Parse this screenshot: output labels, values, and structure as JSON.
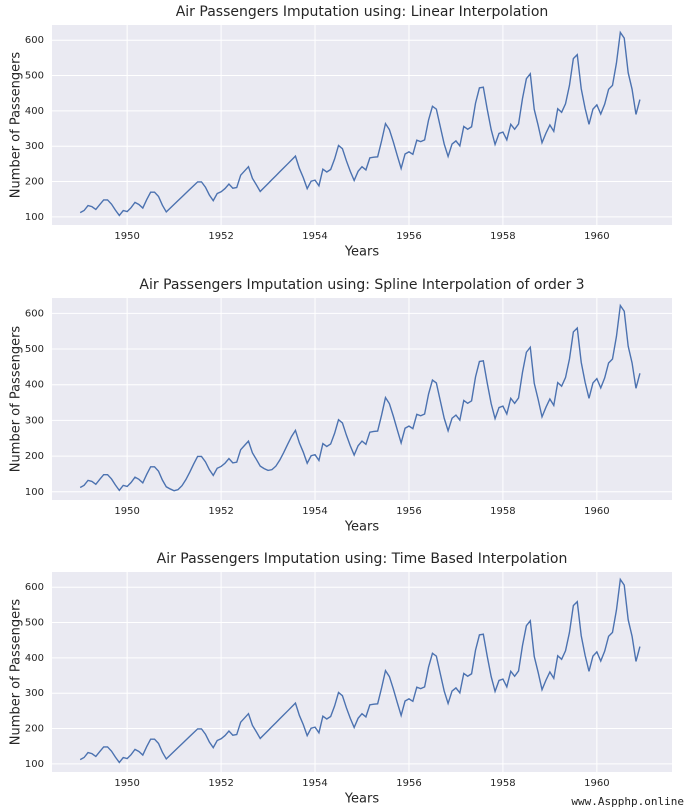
{
  "chart_data": [
    {
      "type": "line",
      "title": "Air Passengers Imputation using: Linear Interpolation",
      "xlabel": "Years",
      "ylabel": "Number of Passengers",
      "color": "#4c72b0",
      "grid": true,
      "xlim": [
        1948.4,
        1961.6
      ],
      "ylim": [
        77,
        643
      ],
      "xticks": [
        1950,
        1952,
        1954,
        1956,
        1958,
        1960
      ],
      "yticks": [
        100,
        200,
        300,
        400,
        500,
        600
      ],
      "x": [
        1949,
        1949.083,
        1949.167,
        1949.25,
        1949.333,
        1949.417,
        1949.5,
        1949.583,
        1949.667,
        1949.75,
        1949.833,
        1949.917,
        1950,
        1950.083,
        1950.167,
        1950.25,
        1950.333,
        1950.417,
        1950.5,
        1950.583,
        1950.667,
        1950.75,
        1950.833,
        1950.917,
        1951,
        1951.083,
        1951.167,
        1951.25,
        1951.333,
        1951.417,
        1951.5,
        1951.583,
        1951.667,
        1951.75,
        1951.833,
        1951.917,
        1952,
        1952.083,
        1952.167,
        1952.25,
        1952.333,
        1952.417,
        1952.5,
        1952.583,
        1952.667,
        1952.75,
        1952.833,
        1952.917,
        1953,
        1953.083,
        1953.167,
        1953.25,
        1953.333,
        1953.417,
        1953.5,
        1953.583,
        1953.667,
        1953.75,
        1953.833,
        1953.917,
        1954,
        1954.083,
        1954.167,
        1954.25,
        1954.333,
        1954.417,
        1954.5,
        1954.583,
        1954.667,
        1954.75,
        1954.833,
        1954.917,
        1955,
        1955.083,
        1955.167,
        1955.25,
        1955.333,
        1955.417,
        1955.5,
        1955.583,
        1955.667,
        1955.75,
        1955.833,
        1955.917,
        1956,
        1956.083,
        1956.167,
        1956.25,
        1956.333,
        1956.417,
        1956.5,
        1956.583,
        1956.667,
        1956.75,
        1956.833,
        1956.917,
        1957,
        1957.083,
        1957.167,
        1957.25,
        1957.333,
        1957.417,
        1957.5,
        1957.583,
        1957.667,
        1957.75,
        1957.833,
        1957.917,
        1958,
        1958.083,
        1958.167,
        1958.25,
        1958.333,
        1958.417,
        1958.5,
        1958.583,
        1958.667,
        1958.75,
        1958.833,
        1958.917,
        1959,
        1959.083,
        1959.167,
        1959.25,
        1959.333,
        1959.417,
        1959.5,
        1959.583,
        1959.667,
        1959.75,
        1959.833,
        1959.917,
        1960,
        1960.083,
        1960.167,
        1960.25,
        1960.333,
        1960.417,
        1960.5,
        1960.583,
        1960.667,
        1960.75,
        1960.833,
        1960.917
      ],
      "values": [
        112,
        118,
        132,
        129,
        121,
        135,
        148,
        148,
        136,
        119,
        104,
        118,
        115,
        126,
        141,
        135,
        125,
        149,
        170,
        170,
        158,
        133,
        114,
        124.6,
        135.3,
        145.9,
        156.5,
        167.1,
        177.8,
        188.4,
        199,
        199,
        184,
        162,
        146,
        166,
        171,
        180,
        193,
        181,
        183,
        218,
        230,
        242,
        209,
        191,
        172,
        183.1,
        194.2,
        205.3,
        216.4,
        227.6,
        238.7,
        249.8,
        260.9,
        272,
        237,
        211,
        180,
        201,
        204,
        188,
        235,
        227,
        234,
        264,
        302,
        293,
        259,
        229,
        203,
        229,
        242,
        233,
        267,
        269,
        270,
        315,
        364,
        347,
        312,
        274,
        237,
        278,
        284,
        277,
        317,
        313,
        318,
        374,
        413,
        405,
        355,
        306,
        271,
        306,
        315,
        301,
        356,
        348,
        355,
        422,
        465,
        467,
        404,
        347,
        305,
        336,
        340,
        318,
        362,
        348,
        363,
        435,
        491,
        505,
        404,
        359,
        310,
        337,
        360,
        342,
        406,
        396,
        420,
        472,
        548,
        559,
        463,
        407,
        362,
        405,
        417,
        391,
        419,
        461,
        472,
        535,
        622,
        606,
        508,
        461,
        390,
        432
      ]
    },
    {
      "type": "line",
      "title": "Air Passengers Imputation using: Spline Interpolation of order 3",
      "xlabel": "Years",
      "ylabel": "Number of Passengers",
      "color": "#4c72b0",
      "grid": true,
      "xlim": [
        1948.4,
        1961.6
      ],
      "ylim": [
        77,
        643
      ],
      "xticks": [
        1950,
        1952,
        1954,
        1956,
        1958,
        1960
      ],
      "yticks": [
        100,
        200,
        300,
        400,
        500,
        600
      ],
      "x": [
        1949,
        1949.083,
        1949.167,
        1949.25,
        1949.333,
        1949.417,
        1949.5,
        1949.583,
        1949.667,
        1949.75,
        1949.833,
        1949.917,
        1950,
        1950.083,
        1950.167,
        1950.25,
        1950.333,
        1950.417,
        1950.5,
        1950.583,
        1950.667,
        1950.75,
        1950.833,
        1950.917,
        1951,
        1951.083,
        1951.167,
        1951.25,
        1951.333,
        1951.417,
        1951.5,
        1951.583,
        1951.667,
        1951.75,
        1951.833,
        1951.917,
        1952,
        1952.083,
        1952.167,
        1952.25,
        1952.333,
        1952.417,
        1952.5,
        1952.583,
        1952.667,
        1952.75,
        1952.833,
        1952.917,
        1953,
        1953.083,
        1953.167,
        1953.25,
        1953.333,
        1953.417,
        1953.5,
        1953.583,
        1953.667,
        1953.75,
        1953.833,
        1953.917,
        1954,
        1954.083,
        1954.167,
        1954.25,
        1954.333,
        1954.417,
        1954.5,
        1954.583,
        1954.667,
        1954.75,
        1954.833,
        1954.917,
        1955,
        1955.083,
        1955.167,
        1955.25,
        1955.333,
        1955.417,
        1955.5,
        1955.583,
        1955.667,
        1955.75,
        1955.833,
        1955.917,
        1956,
        1956.083,
        1956.167,
        1956.25,
        1956.333,
        1956.417,
        1956.5,
        1956.583,
        1956.667,
        1956.75,
        1956.833,
        1956.917,
        1957,
        1957.083,
        1957.167,
        1957.25,
        1957.333,
        1957.417,
        1957.5,
        1957.583,
        1957.667,
        1957.75,
        1957.833,
        1957.917,
        1958,
        1958.083,
        1958.167,
        1958.25,
        1958.333,
        1958.417,
        1958.5,
        1958.583,
        1958.667,
        1958.75,
        1958.833,
        1958.917,
        1959,
        1959.083,
        1959.167,
        1959.25,
        1959.333,
        1959.417,
        1959.5,
        1959.583,
        1959.667,
        1959.75,
        1959.833,
        1959.917,
        1960,
        1960.083,
        1960.167,
        1960.25,
        1960.333,
        1960.417,
        1960.5,
        1960.583,
        1960.667,
        1960.75,
        1960.833,
        1960.917
      ],
      "values": [
        112,
        118,
        132,
        129,
        121,
        135,
        148,
        148,
        136,
        119,
        104,
        118,
        115,
        126,
        141,
        135,
        125,
        149,
        170,
        170,
        158,
        133,
        114,
        108,
        103,
        106,
        117,
        134,
        155,
        178,
        199,
        199,
        184,
        162,
        146,
        166,
        171,
        180,
        193,
        181,
        183,
        218,
        230,
        242,
        209,
        191,
        172,
        165,
        160,
        162,
        172,
        189,
        210,
        233,
        255,
        272,
        237,
        211,
        180,
        201,
        204,
        188,
        235,
        227,
        234,
        264,
        302,
        293,
        259,
        229,
        203,
        229,
        242,
        233,
        267,
        269,
        270,
        315,
        364,
        347,
        312,
        274,
        237,
        278,
        284,
        277,
        317,
        313,
        318,
        374,
        413,
        405,
        355,
        306,
        271,
        306,
        315,
        301,
        356,
        348,
        355,
        422,
        465,
        467,
        404,
        347,
        305,
        336,
        340,
        318,
        362,
        348,
        363,
        435,
        491,
        505,
        404,
        359,
        310,
        337,
        360,
        342,
        406,
        396,
        420,
        472,
        548,
        559,
        463,
        407,
        362,
        405,
        417,
        391,
        419,
        461,
        472,
        535,
        622,
        606,
        508,
        461,
        390,
        432
      ]
    },
    {
      "type": "line",
      "title": "Air Passengers Imputation using: Time Based Interpolation",
      "xlabel": "Years",
      "ylabel": "Number of Passengers",
      "color": "#4c72b0",
      "grid": true,
      "xlim": [
        1948.4,
        1961.6
      ],
      "ylim": [
        77,
        643
      ],
      "xticks": [
        1950,
        1952,
        1954,
        1956,
        1958,
        1960
      ],
      "yticks": [
        100,
        200,
        300,
        400,
        500,
        600
      ],
      "x": [
        1949,
        1949.083,
        1949.167,
        1949.25,
        1949.333,
        1949.417,
        1949.5,
        1949.583,
        1949.667,
        1949.75,
        1949.833,
        1949.917,
        1950,
        1950.083,
        1950.167,
        1950.25,
        1950.333,
        1950.417,
        1950.5,
        1950.583,
        1950.667,
        1950.75,
        1950.833,
        1950.917,
        1951,
        1951.083,
        1951.167,
        1951.25,
        1951.333,
        1951.417,
        1951.5,
        1951.583,
        1951.667,
        1951.75,
        1951.833,
        1951.917,
        1952,
        1952.083,
        1952.167,
        1952.25,
        1952.333,
        1952.417,
        1952.5,
        1952.583,
        1952.667,
        1952.75,
        1952.833,
        1952.917,
        1953,
        1953.083,
        1953.167,
        1953.25,
        1953.333,
        1953.417,
        1953.5,
        1953.583,
        1953.667,
        1953.75,
        1953.833,
        1953.917,
        1954,
        1954.083,
        1954.167,
        1954.25,
        1954.333,
        1954.417,
        1954.5,
        1954.583,
        1954.667,
        1954.75,
        1954.833,
        1954.917,
        1955,
        1955.083,
        1955.167,
        1955.25,
        1955.333,
        1955.417,
        1955.5,
        1955.583,
        1955.667,
        1955.75,
        1955.833,
        1955.917,
        1956,
        1956.083,
        1956.167,
        1956.25,
        1956.333,
        1956.417,
        1956.5,
        1956.583,
        1956.667,
        1956.75,
        1956.833,
        1956.917,
        1957,
        1957.083,
        1957.167,
        1957.25,
        1957.333,
        1957.417,
        1957.5,
        1957.583,
        1957.667,
        1957.75,
        1957.833,
        1957.917,
        1958,
        1958.083,
        1958.167,
        1958.25,
        1958.333,
        1958.417,
        1958.5,
        1958.583,
        1958.667,
        1958.75,
        1958.833,
        1958.917,
        1959,
        1959.083,
        1959.167,
        1959.25,
        1959.333,
        1959.417,
        1959.5,
        1959.583,
        1959.667,
        1959.75,
        1959.833,
        1959.917,
        1960,
        1960.083,
        1960.167,
        1960.25,
        1960.333,
        1960.417,
        1960.5,
        1960.583,
        1960.667,
        1960.75,
        1960.833,
        1960.917
      ],
      "values": [
        112,
        118,
        132,
        129,
        121,
        135,
        148,
        148,
        136,
        119,
        104,
        118,
        115,
        126,
        141,
        135,
        125,
        149,
        170,
        170,
        158,
        133,
        114,
        124.6,
        135.3,
        145.9,
        156.5,
        167.1,
        177.8,
        188.4,
        199,
        199,
        184,
        162,
        146,
        166,
        171,
        180,
        193,
        181,
        183,
        218,
        230,
        242,
        209,
        191,
        172,
        183.1,
        194.2,
        205.3,
        216.4,
        227.6,
        238.7,
        249.8,
        260.9,
        272,
        237,
        211,
        180,
        201,
        204,
        188,
        235,
        227,
        234,
        264,
        302,
        293,
        259,
        229,
        203,
        229,
        242,
        233,
        267,
        269,
        270,
        315,
        364,
        347,
        312,
        274,
        237,
        278,
        284,
        277,
        317,
        313,
        318,
        374,
        413,
        405,
        355,
        306,
        271,
        306,
        315,
        301,
        356,
        348,
        355,
        422,
        465,
        467,
        404,
        347,
        305,
        336,
        340,
        318,
        362,
        348,
        363,
        435,
        491,
        505,
        404,
        359,
        310,
        337,
        360,
        342,
        406,
        396,
        420,
        472,
        548,
        559,
        463,
        407,
        362,
        405,
        417,
        391,
        419,
        461,
        472,
        535,
        622,
        606,
        508,
        461,
        390,
        432
      ]
    }
  ],
  "watermark": "www.Aspphp.online"
}
